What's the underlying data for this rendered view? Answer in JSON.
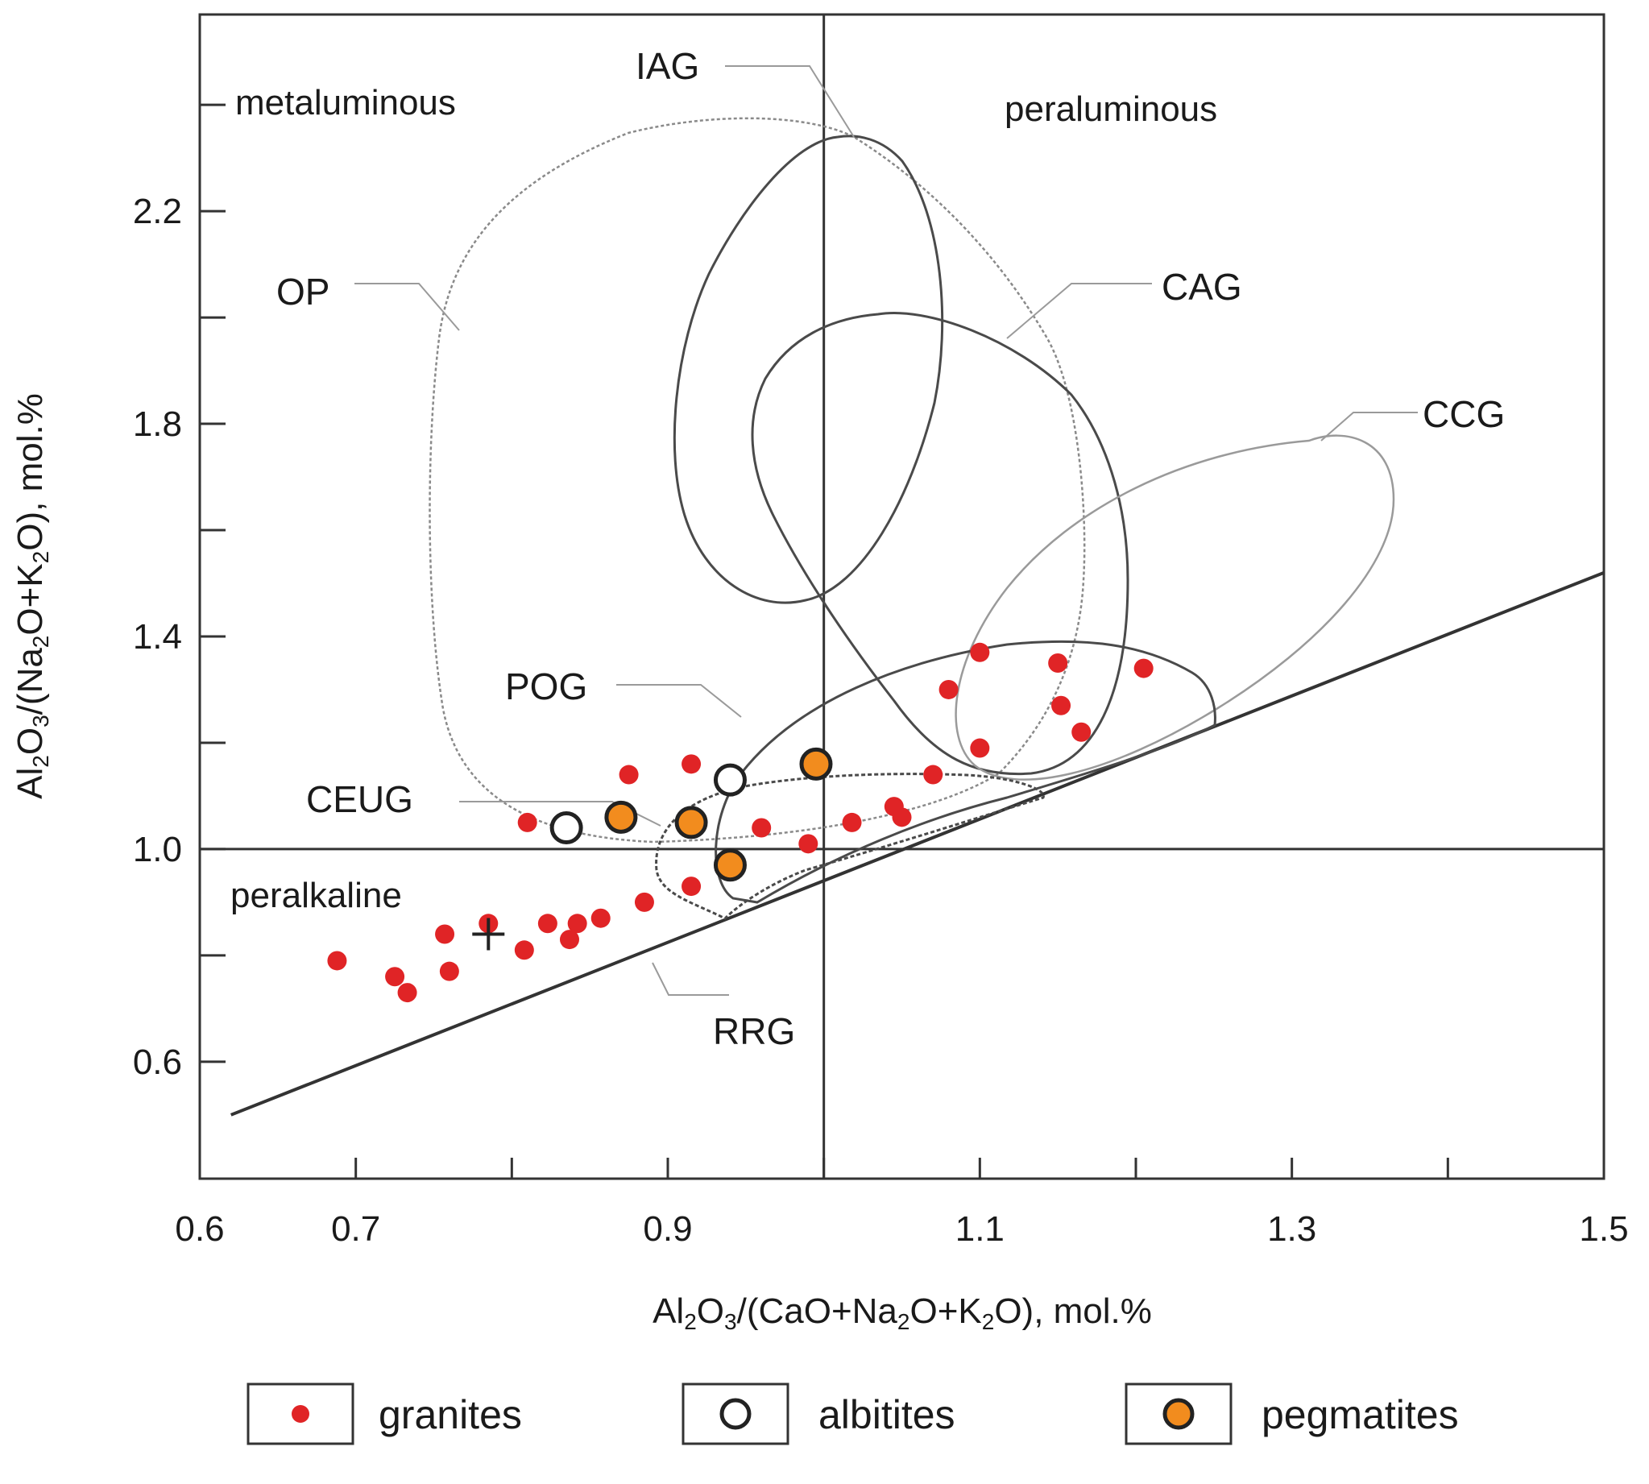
{
  "chart_data": {
    "type": "scatter",
    "title": "",
    "xlabel": "Al2O3/(CaO+Na2O+K2O), mol.%",
    "ylabel": "Al2O3/(Na2O+K2O), mol.%",
    "xlim": [
      0.6,
      1.5
    ],
    "ylim": [
      0.38,
      2.57
    ],
    "x_ticks": [
      0.6,
      0.7,
      0.8,
      0.9,
      1.0,
      1.1,
      1.2,
      1.3,
      1.4,
      1.5
    ],
    "x_tick_labels": [
      "0.6",
      "0.7",
      "0.9",
      "1.1",
      "1.3",
      "1.5"
    ],
    "y_ticks": [
      0.6,
      0.8,
      1.0,
      1.2,
      1.4,
      1.6,
      1.8,
      2.0,
      2.2,
      2.4
    ],
    "y_tick_labels": [
      "0.6",
      "1.0",
      "1.4",
      "1.8",
      "2.2"
    ],
    "grid": false,
    "region_labels": [
      "metaluminous",
      "peraluminous",
      "peralkaline"
    ],
    "field_labels": [
      "IAG",
      "OP",
      "CAG",
      "CCG",
      "POG",
      "CEUG",
      "RRG"
    ],
    "field_colors": {
      "IAG": "#4a4a4a",
      "OP": "#8a8a8a",
      "CAG": "#4a4a4a",
      "CCG": "#9a9a9a",
      "POG": "#4a4a4a",
      "CEUG": "#4a4a4a",
      "RRG": "#4a4a4a"
    },
    "series": [
      {
        "name": "granites",
        "color": "#e02426",
        "points": [
          [
            0.688,
            0.79
          ],
          [
            0.725,
            0.76
          ],
          [
            0.733,
            0.73
          ],
          [
            0.757,
            0.84
          ],
          [
            0.76,
            0.77
          ],
          [
            0.785,
            0.86
          ],
          [
            0.808,
            0.81
          ],
          [
            0.81,
            1.05
          ],
          [
            0.823,
            0.86
          ],
          [
            0.837,
            0.83
          ],
          [
            0.842,
            0.86
          ],
          [
            0.857,
            0.87
          ],
          [
            0.875,
            1.14
          ],
          [
            0.885,
            0.9
          ],
          [
            0.915,
            1.16
          ],
          [
            0.915,
            0.93
          ],
          [
            0.96,
            1.04
          ],
          [
            0.99,
            1.01
          ],
          [
            1.018,
            1.05
          ],
          [
            1.045,
            1.08
          ],
          [
            1.05,
            1.06
          ],
          [
            1.07,
            1.14
          ],
          [
            1.08,
            1.3
          ],
          [
            1.1,
            1.37
          ],
          [
            1.1,
            1.19
          ],
          [
            1.15,
            1.35
          ],
          [
            1.152,
            1.27
          ],
          [
            1.165,
            1.22
          ],
          [
            1.205,
            1.34
          ]
        ]
      },
      {
        "name": "albitites",
        "color": "#ffffff",
        "points": [
          [
            0.835,
            1.04
          ],
          [
            0.94,
            1.13
          ]
        ]
      },
      {
        "name": "pegmatites",
        "color": "#f28c1e",
        "points": [
          [
            0.87,
            1.06
          ],
          [
            0.915,
            1.05
          ],
          [
            0.94,
            0.97
          ],
          [
            0.995,
            1.16
          ]
        ]
      }
    ],
    "reference_lines": [
      {
        "name": "ACNK = 1",
        "x": 1.0
      },
      {
        "name": "ANK = 1",
        "y": 1.0
      },
      {
        "name": "ANK = ACNK",
        "from": [
          0.62,
          0.5
        ],
        "to": [
          1.5,
          1.52
        ]
      }
    ],
    "extra_markers": [
      {
        "name": "RRG cross marker",
        "symbol": "+",
        "point": [
          0.785,
          0.84
        ]
      }
    ],
    "legend": {
      "placement": "bottom",
      "entries": [
        "granites",
        "albitites",
        "pegmatites"
      ]
    }
  }
}
